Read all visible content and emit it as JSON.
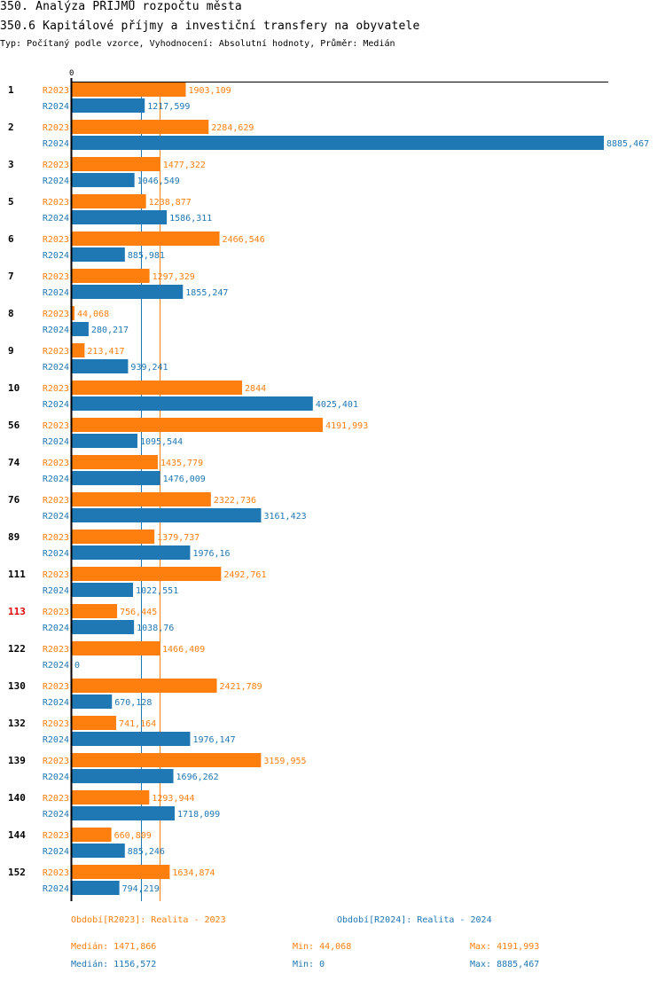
{
  "header": {
    "title": "350. Analýza PŘÍJMŮ rozpočtu města",
    "subtitle": "350.6 Kapitálové příjmy a investiční transfery na obyvatele",
    "info": "Typ: Počítaný podle vzorce, Vyhodnocení: Absolutní hodnoty, Průměr: Medián"
  },
  "colors": {
    "R2023": "#ff7f0e",
    "R2024": "#1f77b4",
    "highlight": "#e00000",
    "axis": "#000000"
  },
  "chart_data": {
    "type": "bar",
    "orientation": "horizontal",
    "title": "350.6 Kapitálové příjmy a investiční transfery na obyvatele",
    "xlabel": "",
    "ylabel": "",
    "x_tick_labels": [
      "0"
    ],
    "xlim": [
      0,
      8885.467
    ],
    "grid": false,
    "categories": [
      "1",
      "2",
      "3",
      "5",
      "6",
      "7",
      "8",
      "9",
      "10",
      "56",
      "74",
      "76",
      "89",
      "111",
      "113",
      "122",
      "130",
      "132",
      "139",
      "140",
      "144",
      "152"
    ],
    "highlighted_category": "113",
    "series": [
      {
        "name": "R2023",
        "values": [
          1903.109,
          2284.629,
          1477.322,
          1238.877,
          2466.546,
          1297.329,
          44.068,
          213.417,
          2844,
          4191.993,
          1435.779,
          2322.736,
          1379.737,
          2492.761,
          756.445,
          1466.409,
          2421.789,
          741.164,
          3159.955,
          1293.944,
          660.809,
          1634.874
        ],
        "labels": [
          "1903,109",
          "2284,629",
          "1477,322",
          "1238,877",
          "2466,546",
          "1297,329",
          "44,068",
          "213,417",
          "2844",
          "4191,993",
          "1435,779",
          "2322,736",
          "1379,737",
          "2492,761",
          "756,445",
          "1466,409",
          "2421,789",
          "741,164",
          "3159,955",
          "1293,944",
          "660,809",
          "1634,874"
        ]
      },
      {
        "name": "R2024",
        "values": [
          1217.599,
          8885.467,
          1046.549,
          1586.311,
          885.981,
          1855.247,
          280.217,
          939.241,
          4025.401,
          1095.544,
          1476.009,
          3161.423,
          1976.16,
          1022.551,
          1038.76,
          0,
          670.128,
          1976.147,
          1696.262,
          1718.099,
          885.246,
          794.219
        ],
        "labels": [
          "1217,599",
          "8885,467",
          "1046,549",
          "1586,311",
          "885,981",
          "1855,247",
          "280,217",
          "939,241",
          "4025,401",
          "1095,544",
          "1476,009",
          "3161,423",
          "1976,16",
          "1022,551",
          "1038,76",
          "0",
          "670,128",
          "1976,147",
          "1696,262",
          "1718,099",
          "885,246",
          "794,219"
        ]
      }
    ],
    "reference_lines": [
      {
        "series": "R2023",
        "type": "median",
        "value": 1471.866
      },
      {
        "series": "R2024",
        "type": "median",
        "value": 1156.572
      }
    ]
  },
  "legend": {
    "r2023": "Období[R2023]: Realita - 2023",
    "r2024": "Období[R2024]: Realita - 2024"
  },
  "stats": {
    "r2023": {
      "median": "Medián: 1471,866",
      "min": "Min: 44,068",
      "max": "Max: 4191,993"
    },
    "r2024": {
      "median": "Medián: 1156,572",
      "min": "Min: 0",
      "max": "Max: 8885,467"
    }
  }
}
